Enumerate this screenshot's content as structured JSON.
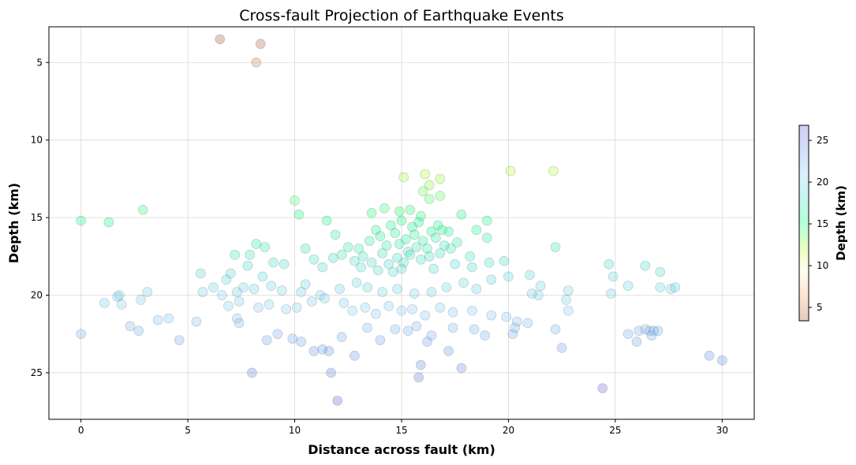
{
  "chart_data": {
    "type": "scatter",
    "title": "Cross-fault Projection of Earthquake Events",
    "xlabel": "Distance across fault (km)",
    "ylabel": "Depth (km)",
    "xlim": [
      -1.5,
      31.5
    ],
    "ylim": [
      28,
      2.7
    ],
    "y_inverted": true,
    "xticks": [
      0,
      5,
      10,
      15,
      20,
      25,
      30
    ],
    "yticks": [
      5,
      10,
      15,
      20,
      25
    ],
    "grid": true,
    "colorbar": {
      "label": "Depth (km)",
      "range": [
        3.4,
        26.8
      ],
      "ticks": [
        5,
        10,
        15,
        20,
        25
      ],
      "colors": [
        "#a0522d",
        "#f4a460",
        "#fffacd",
        "#adff2f",
        "#00ff7f",
        "#40e0d0",
        "#87cefa",
        "#6495ed",
        "#6a5acd"
      ]
    },
    "points": [
      [
        6.5,
        3.5
      ],
      [
        8.4,
        3.8
      ],
      [
        8.2,
        5.0
      ],
      [
        16.1,
        12.2
      ],
      [
        16.8,
        12.5
      ],
      [
        15.1,
        12.4
      ],
      [
        20.1,
        12.0
      ],
      [
        22.1,
        12.0
      ],
      [
        16.3,
        12.9
      ],
      [
        16.0,
        13.3
      ],
      [
        16.3,
        13.8
      ],
      [
        16.8,
        13.6
      ],
      [
        10.0,
        13.9
      ],
      [
        10.2,
        14.8
      ],
      [
        0.0,
        15.2
      ],
      [
        1.3,
        15.3
      ],
      [
        2.9,
        14.5
      ],
      [
        11.5,
        15.2
      ],
      [
        17.8,
        14.8
      ],
      [
        19.0,
        15.2
      ],
      [
        18.5,
        15.8
      ],
      [
        11.9,
        16.1
      ],
      [
        13.6,
        14.7
      ],
      [
        14.2,
        14.4
      ],
      [
        14.9,
        14.6
      ],
      [
        15.4,
        14.5
      ],
      [
        15.9,
        14.9
      ],
      [
        19.0,
        16.3
      ],
      [
        22.2,
        16.9
      ],
      [
        13.0,
        17.0
      ],
      [
        13.5,
        16.5
      ],
      [
        13.8,
        15.8
      ],
      [
        14.0,
        16.2
      ],
      [
        14.3,
        16.8
      ],
      [
        14.5,
        15.5
      ],
      [
        14.7,
        16.0
      ],
      [
        14.9,
        16.7
      ],
      [
        15.0,
        15.2
      ],
      [
        15.2,
        16.4
      ],
      [
        15.3,
        17.2
      ],
      [
        15.5,
        15.6
      ],
      [
        15.6,
        16.1
      ],
      [
        15.7,
        16.9
      ],
      [
        15.8,
        15.3
      ],
      [
        16.0,
        16.5
      ],
      [
        16.2,
        17.0
      ],
      [
        16.4,
        15.9
      ],
      [
        16.6,
        16.3
      ],
      [
        16.7,
        15.5
      ],
      [
        16.9,
        15.8
      ],
      [
        17.0,
        16.8
      ],
      [
        17.2,
        15.9
      ],
      [
        13.2,
        17.5
      ],
      [
        13.6,
        17.9
      ],
      [
        14.1,
        17.3
      ],
      [
        14.4,
        18.0
      ],
      [
        14.8,
        17.6
      ],
      [
        15.1,
        17.9
      ],
      [
        15.4,
        17.4
      ],
      [
        15.9,
        17.7
      ],
      [
        16.3,
        17.5
      ],
      [
        16.8,
        17.3
      ],
      [
        17.3,
        17.0
      ],
      [
        17.6,
        16.6
      ],
      [
        12.5,
        16.9
      ],
      [
        12.8,
        17.8
      ],
      [
        13.1,
        18.2
      ],
      [
        13.9,
        18.4
      ],
      [
        14.6,
        18.5
      ],
      [
        15.0,
        18.3
      ],
      [
        16.5,
        18.3
      ],
      [
        17.5,
        18.0
      ],
      [
        12.2,
        17.4
      ],
      [
        11.8,
        17.6
      ],
      [
        18.2,
        17.5
      ],
      [
        18.3,
        18.2
      ],
      [
        19.1,
        17.9
      ],
      [
        19.8,
        17.8
      ],
      [
        10.5,
        17.0
      ],
      [
        10.9,
        17.7
      ],
      [
        11.3,
        18.2
      ],
      [
        9.5,
        18.0
      ],
      [
        9.0,
        17.9
      ],
      [
        8.5,
        18.8
      ],
      [
        8.2,
        16.7
      ],
      [
        8.6,
        16.9
      ],
      [
        7.9,
        17.4
      ],
      [
        7.2,
        17.4
      ],
      [
        7.8,
        18.1
      ],
      [
        7.0,
        18.6
      ],
      [
        6.8,
        19.0
      ],
      [
        5.6,
        18.6
      ],
      [
        6.2,
        19.5
      ],
      [
        5.7,
        19.8
      ],
      [
        7.3,
        19.8
      ],
      [
        7.6,
        19.5
      ],
      [
        8.1,
        19.6
      ],
      [
        8.9,
        19.4
      ],
      [
        9.4,
        19.7
      ],
      [
        10.5,
        19.3
      ],
      [
        10.3,
        19.8
      ],
      [
        11.2,
        20.0
      ],
      [
        12.1,
        19.6
      ],
      [
        12.9,
        19.2
      ],
      [
        13.4,
        19.5
      ],
      [
        14.1,
        19.8
      ],
      [
        14.8,
        19.6
      ],
      [
        15.6,
        19.9
      ],
      [
        16.4,
        19.8
      ],
      [
        17.1,
        19.5
      ],
      [
        17.9,
        19.2
      ],
      [
        18.5,
        19.6
      ],
      [
        19.2,
        19.0
      ],
      [
        20.0,
        18.8
      ],
      [
        21.0,
        18.7
      ],
      [
        21.5,
        19.4
      ],
      [
        22.8,
        19.7
      ],
      [
        24.7,
        18.0
      ],
      [
        24.9,
        18.8
      ],
      [
        26.4,
        18.1
      ],
      [
        27.1,
        18.5
      ],
      [
        27.1,
        19.5
      ],
      [
        27.6,
        19.6
      ],
      [
        27.8,
        19.5
      ],
      [
        25.6,
        19.4
      ],
      [
        24.8,
        19.9
      ],
      [
        1.8,
        20.0
      ],
      [
        1.7,
        20.1
      ],
      [
        1.1,
        20.5
      ],
      [
        1.9,
        20.6
      ],
      [
        2.8,
        20.3
      ],
      [
        3.1,
        19.8
      ],
      [
        6.6,
        20.0
      ],
      [
        6.9,
        20.7
      ],
      [
        7.4,
        20.4
      ],
      [
        8.3,
        20.8
      ],
      [
        8.8,
        20.6
      ],
      [
        9.6,
        20.9
      ],
      [
        10.1,
        20.8
      ],
      [
        10.8,
        20.4
      ],
      [
        11.4,
        20.2
      ],
      [
        12.3,
        20.5
      ],
      [
        12.7,
        21.0
      ],
      [
        13.3,
        20.8
      ],
      [
        13.8,
        21.2
      ],
      [
        14.4,
        20.7
      ],
      [
        15.0,
        21.0
      ],
      [
        15.5,
        20.9
      ],
      [
        16.1,
        21.3
      ],
      [
        16.8,
        20.8
      ],
      [
        17.4,
        21.1
      ],
      [
        18.3,
        21.0
      ],
      [
        19.2,
        21.3
      ],
      [
        19.9,
        21.4
      ],
      [
        20.4,
        21.7
      ],
      [
        20.9,
        21.8
      ],
      [
        21.4,
        20.0
      ],
      [
        21.1,
        19.9
      ],
      [
        22.7,
        20.3
      ],
      [
        22.8,
        21.0
      ],
      [
        7.3,
        21.5
      ],
      [
        7.4,
        21.8
      ],
      [
        5.4,
        21.7
      ],
      [
        4.1,
        21.5
      ],
      [
        3.6,
        21.6
      ],
      [
        2.3,
        22.0
      ],
      [
        2.7,
        22.3
      ],
      [
        0.0,
        22.5
      ],
      [
        4.6,
        22.9
      ],
      [
        8.7,
        22.9
      ],
      [
        9.2,
        22.5
      ],
      [
        9.9,
        22.8
      ],
      [
        10.3,
        23.0
      ],
      [
        10.9,
        23.6
      ],
      [
        11.3,
        23.5
      ],
      [
        11.6,
        23.6
      ],
      [
        12.2,
        22.7
      ],
      [
        12.8,
        23.9
      ],
      [
        13.4,
        22.1
      ],
      [
        14.0,
        22.9
      ],
      [
        14.7,
        22.2
      ],
      [
        15.3,
        22.3
      ],
      [
        15.7,
        22.0
      ],
      [
        16.2,
        23.0
      ],
      [
        16.4,
        22.6
      ],
      [
        17.2,
        23.6
      ],
      [
        17.4,
        22.1
      ],
      [
        18.4,
        22.2
      ],
      [
        18.9,
        22.6
      ],
      [
        20.2,
        22.5
      ],
      [
        20.3,
        22.1
      ],
      [
        22.2,
        22.2
      ],
      [
        22.5,
        23.4
      ],
      [
        25.6,
        22.5
      ],
      [
        26.0,
        23.0
      ],
      [
        26.1,
        22.3
      ],
      [
        26.4,
        22.2
      ],
      [
        26.6,
        22.3
      ],
      [
        26.8,
        22.3
      ],
      [
        26.7,
        22.6
      ],
      [
        27.0,
        22.3
      ],
      [
        8.0,
        25.0
      ],
      [
        11.7,
        25.0
      ],
      [
        15.9,
        24.5
      ],
      [
        15.8,
        25.3
      ],
      [
        17.8,
        24.7
      ],
      [
        12.0,
        26.8
      ],
      [
        24.4,
        26.0
      ],
      [
        29.4,
        23.9
      ],
      [
        30.0,
        24.2
      ]
    ]
  }
}
